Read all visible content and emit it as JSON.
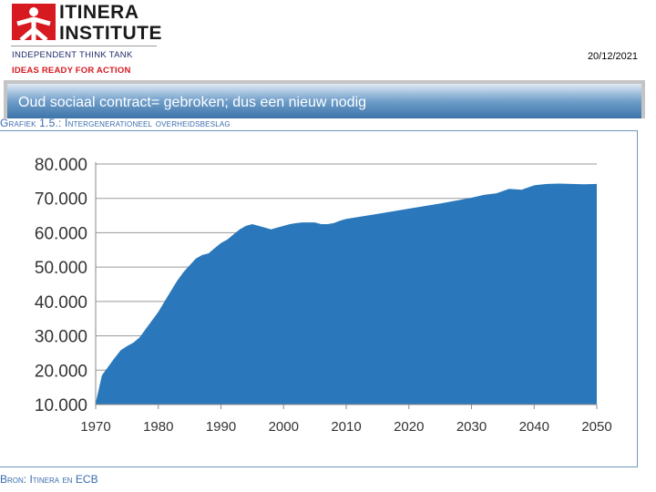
{
  "header": {
    "logo_line1": "ITINERA",
    "logo_line2": "INSTITUTE",
    "tagline1": "INDEPENDENT THINK TANK",
    "tagline2": "IDEAS READY FOR ACTION",
    "date": "20/12/2021"
  },
  "banner": {
    "title": "Oud sociaal contract= gebroken; dus een nieuw nodig"
  },
  "colors": {
    "area": "#2a78bb",
    "brand_red": "#d71920",
    "title_blue": "#3a6cae"
  },
  "chart_data": {
    "type": "area",
    "title": "Grafiek 1.5.: Intergenerationeel overheidsbeslag",
    "source": "Bron: Itinera en ECB",
    "xlim": [
      1970,
      2050
    ],
    "ylim": [
      10000,
      80000
    ],
    "x_ticks": [
      1970,
      1980,
      1990,
      2000,
      2010,
      2020,
      2030,
      2040,
      2050
    ],
    "x_tick_labels": [
      "1970",
      "1980",
      "1990",
      "2000",
      "2010",
      "2020",
      "2030",
      "2040",
      "2050"
    ],
    "y_ticks": [
      10000,
      20000,
      30000,
      40000,
      50000,
      60000,
      70000,
      80000
    ],
    "y_tick_labels": [
      "10.000",
      "20.000",
      "30.000",
      "40.000",
      "50.000",
      "60.000",
      "70.000",
      "80.000"
    ],
    "grid": true,
    "series": [
      {
        "x": [
          1970,
          1971,
          1972,
          1973,
          1974,
          1975,
          1976,
          1977,
          1978,
          1979,
          1980,
          1981,
          1982,
          1983,
          1984,
          1985,
          1986,
          1987,
          1988,
          1989,
          1990,
          1991,
          1992,
          1993,
          1994,
          1995,
          1996,
          1997,
          1998,
          1999,
          2000,
          2001,
          2002,
          2003,
          2004,
          2005,
          2006,
          2007,
          2008,
          2009,
          2010,
          2015,
          2020,
          2025,
          2030,
          2032,
          2034,
          2036,
          2038,
          2040,
          2042,
          2044,
          2046,
          2048,
          2050
        ],
        "y": [
          10500,
          18500,
          21000,
          23500,
          25800,
          27000,
          28000,
          29500,
          32000,
          34500,
          37000,
          40000,
          43000,
          46000,
          48500,
          50500,
          52500,
          53500,
          54000,
          55500,
          57000,
          58000,
          59500,
          61000,
          62000,
          62500,
          62000,
          61500,
          61000,
          61500,
          62000,
          62500,
          62800,
          63000,
          63000,
          63000,
          62500,
          62500,
          62800,
          63500,
          64000,
          65500,
          67000,
          68500,
          70200,
          71000,
          71500,
          72800,
          72500,
          73800,
          74200,
          74300,
          74200,
          74100,
          74200
        ]
      }
    ]
  }
}
